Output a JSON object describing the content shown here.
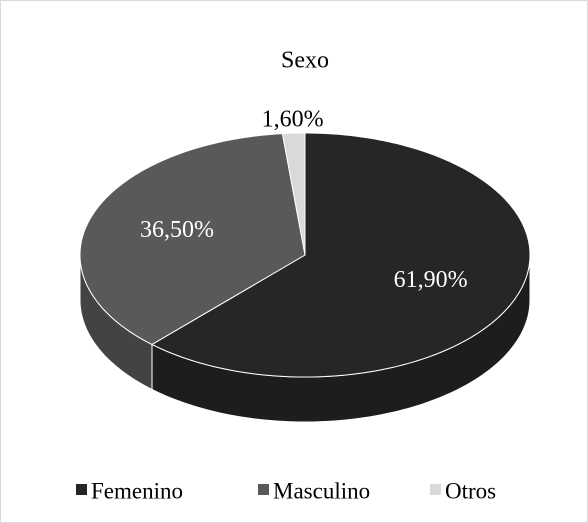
{
  "chart_data": {
    "type": "pie",
    "title": "Sexo",
    "categories": [
      "Femenino",
      "Masculino",
      "Otros"
    ],
    "values": [
      61.9,
      36.5,
      1.6
    ],
    "value_labels": [
      "61,90%",
      "36,50%",
      "1,60%"
    ],
    "colors": [
      "#262626",
      "#595959",
      "#d9d9d9"
    ],
    "legend": "bottom"
  }
}
